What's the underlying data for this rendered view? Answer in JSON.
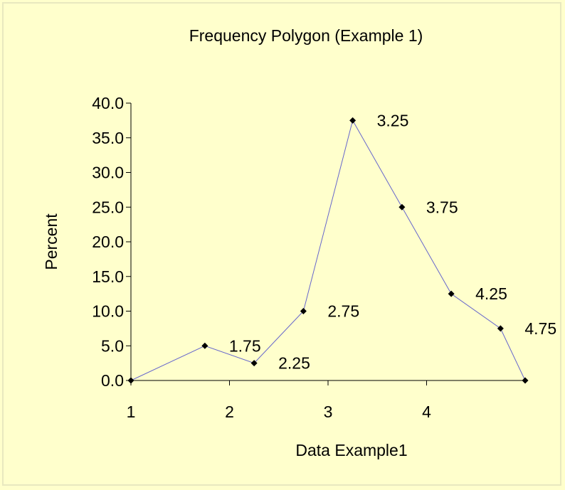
{
  "chart_data": {
    "type": "line",
    "title": "Frequency Polygon (Example 1)",
    "xlabel": "Data Example1",
    "ylabel": "Percent",
    "xlim": [
      1,
      5
    ],
    "ylim": [
      0,
      40
    ],
    "x_ticks": [
      "1",
      "2",
      "3",
      "4"
    ],
    "y_ticks": [
      "0.0",
      "5.0",
      "10.0",
      "15.0",
      "20.0",
      "25.0",
      "30.0",
      "35.0",
      "40.0"
    ],
    "series": [
      {
        "x": [
          1,
          1.75,
          2.25,
          2.75,
          3.25,
          3.75,
          4.25,
          4.75,
          5
        ],
        "values": [
          0,
          5,
          2.5,
          10,
          37.5,
          25,
          12.5,
          7.5,
          0
        ],
        "point_labels": [
          "",
          "1.75",
          "2.25",
          "2.75",
          "3.25",
          "3.75",
          "4.25",
          "4.75",
          ""
        ]
      }
    ],
    "line_color": "#6666cc",
    "marker_color": "#000000",
    "grid": false,
    "legend": "none"
  },
  "colors": {
    "background": "#ffffcc"
  }
}
